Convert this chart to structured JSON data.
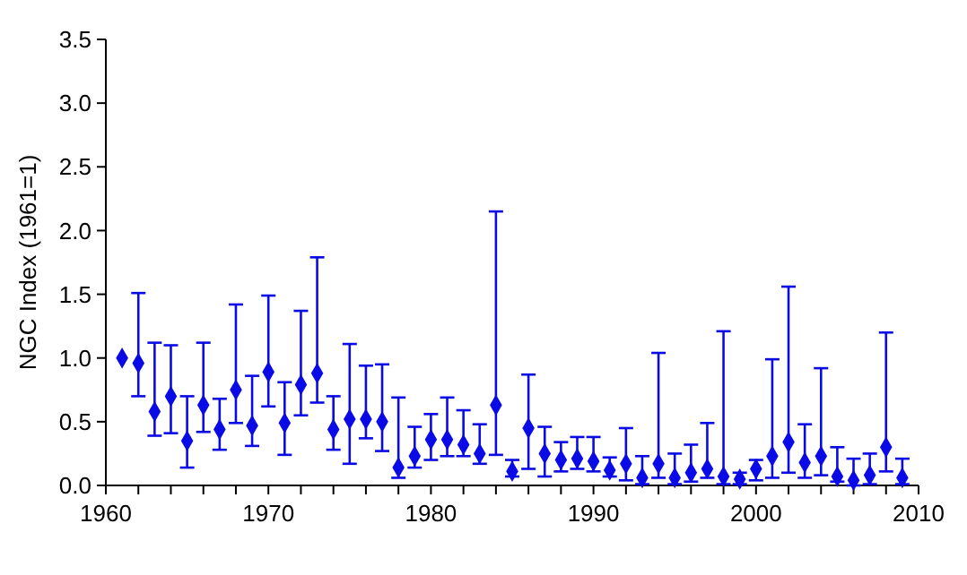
{
  "chart_data": {
    "type": "scatter",
    "ylabel": "NGC Index (1961=1)",
    "marker": "diamond",
    "grid": false,
    "xlim": [
      1960,
      2010
    ],
    "ylim": [
      0,
      3.5
    ],
    "xticks": [
      1960,
      {
        "value": 1962,
        "label": null
      },
      {
        "value": 1964,
        "label": null
      },
      {
        "value": 1966,
        "label": null
      },
      {
        "value": 1968,
        "label": null
      },
      1970,
      {
        "value": 1972,
        "label": null
      },
      {
        "value": 1974,
        "label": null
      },
      {
        "value": 1976,
        "label": null
      },
      {
        "value": 1978,
        "label": null
      },
      1980,
      {
        "value": 1982,
        "label": null
      },
      {
        "value": 1984,
        "label": null
      },
      {
        "value": 1986,
        "label": null
      },
      {
        "value": 1988,
        "label": null
      },
      1990,
      {
        "value": 1992,
        "label": null
      },
      {
        "value": 1994,
        "label": null
      },
      {
        "value": 1996,
        "label": null
      },
      {
        "value": 1998,
        "label": null
      },
      2000,
      {
        "value": 2002,
        "label": null
      },
      {
        "value": 2004,
        "label": null
      },
      {
        "value": 2006,
        "label": null
      },
      {
        "value": 2008,
        "label": null
      },
      2010
    ],
    "yticks": [
      {
        "value": 0,
        "label": "0.0"
      },
      {
        "value": 0.5,
        "label": "0.5"
      },
      {
        "value": 1,
        "label": "1.0"
      },
      {
        "value": 1.5,
        "label": "1.5"
      },
      {
        "value": 2,
        "label": "2.0"
      },
      {
        "value": 2.5,
        "label": "2.5"
      },
      {
        "value": 3,
        "label": "3.0"
      },
      {
        "value": 3.5,
        "label": "3.5"
      }
    ],
    "series": [
      {
        "color": "#0a0ae6",
        "x": [
          1961,
          1962,
          1963,
          1964,
          1965,
          1966,
          1967,
          1968,
          1969,
          1970,
          1971,
          1972,
          1973,
          1974,
          1975,
          1976,
          1977,
          1978,
          1979,
          1980,
          1981,
          1982,
          1983,
          1984,
          1985,
          1986,
          1987,
          1988,
          1989,
          1990,
          1991,
          1992,
          1993,
          1994,
          1995,
          1996,
          1997,
          1998,
          1999,
          2000,
          2001,
          2002,
          2003,
          2004,
          2005,
          2006,
          2007,
          2008,
          2009
        ],
        "values": [
          1.0,
          0.96,
          0.58,
          0.7,
          0.35,
          0.63,
          0.44,
          0.75,
          0.47,
          0.89,
          0.49,
          0.79,
          0.88,
          0.44,
          0.52,
          0.52,
          0.5,
          0.14,
          0.23,
          0.36,
          0.36,
          0.32,
          0.25,
          0.63,
          0.11,
          0.45,
          0.25,
          0.2,
          0.21,
          0.19,
          0.12,
          0.17,
          0.06,
          0.17,
          0.06,
          0.1,
          0.13,
          0.07,
          0.05,
          0.13,
          0.23,
          0.34,
          0.18,
          0.23,
          0.07,
          0.04,
          0.08,
          0.3,
          0.06
        ],
        "errors": [
          null,
          [
            0.7,
            1.51
          ],
          [
            0.39,
            1.12
          ],
          [
            0.41,
            1.1
          ],
          [
            0.14,
            0.7
          ],
          [
            0.42,
            1.12
          ],
          [
            0.28,
            0.68
          ],
          [
            0.49,
            1.42
          ],
          [
            0.31,
            0.86
          ],
          [
            0.62,
            1.49
          ],
          [
            0.24,
            0.81
          ],
          [
            0.55,
            1.37
          ],
          [
            0.65,
            1.79
          ],
          [
            0.28,
            0.7
          ],
          [
            0.17,
            1.11
          ],
          [
            0.37,
            0.94
          ],
          [
            0.27,
            0.95
          ],
          [
            0.06,
            0.69
          ],
          [
            0.14,
            0.46
          ],
          [
            0.2,
            0.56
          ],
          [
            0.23,
            0.69
          ],
          [
            0.23,
            0.59
          ],
          [
            0.17,
            0.48
          ],
          [
            0.24,
            2.15
          ],
          [
            0.07,
            0.2
          ],
          [
            0.13,
            0.87
          ],
          [
            0.07,
            0.46
          ],
          [
            0.11,
            0.34
          ],
          [
            0.13,
            0.38
          ],
          [
            0.11,
            0.38
          ],
          [
            0.07,
            0.22
          ],
          [
            0.04,
            0.45
          ],
          [
            0.01,
            0.23
          ],
          [
            0.06,
            1.04
          ],
          [
            0.01,
            0.25
          ],
          [
            0.03,
            0.32
          ],
          [
            0.06,
            0.49
          ],
          [
            0.01,
            1.21
          ],
          [
            0.01,
            0.1
          ],
          [
            0.04,
            0.2
          ],
          [
            0.06,
            0.99
          ],
          [
            0.1,
            1.56
          ],
          [
            0.06,
            0.48
          ],
          [
            0.08,
            0.92
          ],
          [
            0.03,
            0.3
          ],
          [
            0,
            0.21
          ],
          [
            0.01,
            0.25
          ],
          [
            0.11,
            1.2
          ],
          [
            0.01,
            0.21
          ]
        ]
      }
    ]
  }
}
